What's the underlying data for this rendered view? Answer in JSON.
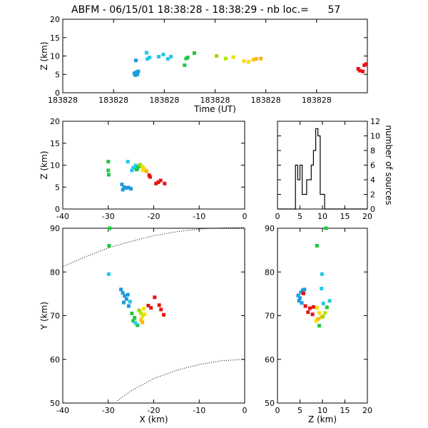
{
  "title": "ABFM - 06/15/01 18:38:28 - 18:38:29 - nb loc.=      57",
  "chart_data": [
    {
      "id": "time-height",
      "type": "scatter",
      "xlabel": "Time (UT)",
      "ylabel": "Z (km)",
      "x_tick_labels": [
        "183828",
        "183828",
        "183828",
        "183828",
        "183828",
        "183828"
      ],
      "xlim": [
        0,
        1
      ],
      "ylim": [
        0,
        20
      ],
      "yticks": [
        0,
        5,
        10,
        15,
        20
      ],
      "points": [
        {
          "x": 0.238,
          "y": 4.8,
          "c": "#1e9bdc"
        },
        {
          "x": 0.242,
          "y": 5.6,
          "c": "#1e9bdc"
        },
        {
          "x": 0.245,
          "y": 5.0,
          "c": "#1e9bdc"
        },
        {
          "x": 0.235,
          "y": 5.3,
          "c": "#1e9bdc"
        },
        {
          "x": 0.248,
          "y": 5.8,
          "c": "#1e9bdc"
        },
        {
          "x": 0.24,
          "y": 8.8,
          "c": "#1e9bdc"
        },
        {
          "x": 0.275,
          "y": 10.9,
          "c": "#22c8e6"
        },
        {
          "x": 0.285,
          "y": 9.6,
          "c": "#22c8e6"
        },
        {
          "x": 0.278,
          "y": 9.2,
          "c": "#22c8e6"
        },
        {
          "x": 0.315,
          "y": 9.8,
          "c": "#22c8e6"
        },
        {
          "x": 0.33,
          "y": 10.4,
          "c": "#22c8e6"
        },
        {
          "x": 0.345,
          "y": 9.2,
          "c": "#22c8e6"
        },
        {
          "x": 0.355,
          "y": 9.8,
          "c": "#22c8e6"
        },
        {
          "x": 0.4,
          "y": 7.5,
          "c": "#1ec840"
        },
        {
          "x": 0.405,
          "y": 9.3,
          "c": "#1ec840"
        },
        {
          "x": 0.41,
          "y": 9.6,
          "c": "#1ec840"
        },
        {
          "x": 0.432,
          "y": 10.8,
          "c": "#1ec840"
        },
        {
          "x": 0.505,
          "y": 10.0,
          "c": "#96dc00"
        },
        {
          "x": 0.535,
          "y": 9.3,
          "c": "#b4e600"
        },
        {
          "x": 0.56,
          "y": 9.7,
          "c": "#e6e600"
        },
        {
          "x": 0.595,
          "y": 8.6,
          "c": "#ffdc00"
        },
        {
          "x": 0.61,
          "y": 8.4,
          "c": "#ffdc00"
        },
        {
          "x": 0.625,
          "y": 9.0,
          "c": "#ffc800"
        },
        {
          "x": 0.635,
          "y": 9.2,
          "c": "#ffb400"
        },
        {
          "x": 0.65,
          "y": 9.3,
          "c": "#ffb400"
        },
        {
          "x": 0.97,
          "y": 6.5,
          "c": "#e61414"
        },
        {
          "x": 0.975,
          "y": 6.0,
          "c": "#e61414"
        },
        {
          "x": 0.985,
          "y": 5.8,
          "c": "#e61414"
        },
        {
          "x": 0.99,
          "y": 7.5,
          "c": "#e61414"
        },
        {
          "x": 0.996,
          "y": 7.8,
          "c": "#e61414"
        }
      ]
    },
    {
      "id": "xz",
      "type": "scatter",
      "ylabel": "Z (km)",
      "xlim": [
        -40,
        0
      ],
      "ylim": [
        0,
        20
      ],
      "xticks": [
        -40,
        -30,
        -20,
        -10,
        0
      ],
      "yticks": [
        0,
        5,
        10,
        15,
        20
      ],
      "points": [
        {
          "x": -30,
          "y": 10.8,
          "c": "#1ec840"
        },
        {
          "x": -30,
          "y": 8.8,
          "c": "#1ec840"
        },
        {
          "x": -29.9,
          "y": 7.8,
          "c": "#1ec840"
        },
        {
          "x": -25.7,
          "y": 10.8,
          "c": "#22c8e6"
        },
        {
          "x": -27,
          "y": 5.6,
          "c": "#1e9bdc"
        },
        {
          "x": -26.5,
          "y": 5.0,
          "c": "#1e9bdc"
        },
        {
          "x": -26,
          "y": 4.8,
          "c": "#1e9bdc"
        },
        {
          "x": -25.5,
          "y": 4.9,
          "c": "#1e9bdc"
        },
        {
          "x": -25,
          "y": 4.6,
          "c": "#1e9bdc"
        },
        {
          "x": -26.8,
          "y": 4.4,
          "c": "#1e9bdc"
        },
        {
          "x": -24.5,
          "y": 9.4,
          "c": "#22c8e6"
        },
        {
          "x": -24,
          "y": 9.9,
          "c": "#22c8e6"
        },
        {
          "x": -24.8,
          "y": 8.8,
          "c": "#22c8e6"
        },
        {
          "x": -23.8,
          "y": 9.0,
          "c": "#1ec840"
        },
        {
          "x": -23.2,
          "y": 9.7,
          "c": "#1ec840"
        },
        {
          "x": -23.6,
          "y": 9.2,
          "c": "#1ec840"
        },
        {
          "x": -23,
          "y": 10.1,
          "c": "#96dc00"
        },
        {
          "x": -22.5,
          "y": 9.7,
          "c": "#e6e600"
        },
        {
          "x": -22.2,
          "y": 9.3,
          "c": "#ffdc00"
        },
        {
          "x": -22,
          "y": 8.8,
          "c": "#ffc800"
        },
        {
          "x": -21.6,
          "y": 8.6,
          "c": "#ffb400"
        },
        {
          "x": -22.4,
          "y": 8.9,
          "c": "#ffdc00"
        },
        {
          "x": -21,
          "y": 7.7,
          "c": "#e61414"
        },
        {
          "x": -20.8,
          "y": 7.3,
          "c": "#e61414"
        },
        {
          "x": -19,
          "y": 6.1,
          "c": "#e61414"
        },
        {
          "x": -18.5,
          "y": 6.5,
          "c": "#e61414"
        },
        {
          "x": -17.6,
          "y": 5.8,
          "c": "#e61414"
        },
        {
          "x": -19.5,
          "y": 5.8,
          "c": "#e61414"
        }
      ]
    },
    {
      "id": "histogram",
      "type": "bar",
      "ylabel": "number of sources",
      "xlim": [
        0,
        20
      ],
      "ylim": [
        0,
        12
      ],
      "xticks": [
        0,
        5,
        10,
        15,
        20
      ],
      "yticks": [
        0,
        2,
        4,
        6,
        8,
        10,
        12
      ],
      "step": [
        [
          0,
          0
        ],
        [
          4,
          0
        ],
        [
          4,
          6
        ],
        [
          4.5,
          6
        ],
        [
          4.5,
          4
        ],
        [
          5,
          4
        ],
        [
          5,
          6
        ],
        [
          5.5,
          6
        ],
        [
          5.5,
          2
        ],
        [
          6.5,
          2
        ],
        [
          6.5,
          4
        ],
        [
          7.5,
          4
        ],
        [
          7.5,
          6
        ],
        [
          8,
          6
        ],
        [
          8,
          8
        ],
        [
          8.5,
          8
        ],
        [
          8.5,
          11
        ],
        [
          9,
          11
        ],
        [
          9,
          10
        ],
        [
          9.5,
          10
        ],
        [
          9.5,
          2
        ],
        [
          10.5,
          2
        ],
        [
          10.5,
          0
        ],
        [
          20,
          0
        ]
      ]
    },
    {
      "id": "xy",
      "type": "scatter",
      "xlabel": "X (km)",
      "ylabel": "Y (km)",
      "xlim": [
        -40,
        0
      ],
      "ylim": [
        50,
        90
      ],
      "xticks": [
        -40,
        -30,
        -20,
        -10,
        0
      ],
      "yticks": [
        50,
        60,
        70,
        80,
        90
      ],
      "points": [
        {
          "x": -29.7,
          "y": 90,
          "c": "#1ec840"
        },
        {
          "x": -29.8,
          "y": 86,
          "c": "#1ec840"
        },
        {
          "x": -29.9,
          "y": 79.5,
          "c": "#22c8e6"
        },
        {
          "x": -27.2,
          "y": 76,
          "c": "#1e9bdc"
        },
        {
          "x": -26.8,
          "y": 75.2,
          "c": "#1e9bdc"
        },
        {
          "x": -26.4,
          "y": 74.5,
          "c": "#1e9bdc"
        },
        {
          "x": -26,
          "y": 73.8,
          "c": "#1e9bdc"
        },
        {
          "x": -25.7,
          "y": 74.8,
          "c": "#1e9bdc"
        },
        {
          "x": -26.6,
          "y": 73.0,
          "c": "#1e9bdc"
        },
        {
          "x": -25.5,
          "y": 72.2,
          "c": "#1e9bdc"
        },
        {
          "x": -25.2,
          "y": 73.2,
          "c": "#22c8e6"
        },
        {
          "x": -24.8,
          "y": 70.5,
          "c": "#1ec840"
        },
        {
          "x": -24.2,
          "y": 69.5,
          "c": "#1ec840"
        },
        {
          "x": -24.5,
          "y": 68.8,
          "c": "#1ec840"
        },
        {
          "x": -23.6,
          "y": 67.8,
          "c": "#1ec840"
        },
        {
          "x": -24.0,
          "y": 68.3,
          "c": "#22c8e6"
        },
        {
          "x": -23.2,
          "y": 71.2,
          "c": "#96dc00"
        },
        {
          "x": -22.8,
          "y": 70.6,
          "c": "#b4e600"
        },
        {
          "x": -22.5,
          "y": 69.8,
          "c": "#e6e600"
        },
        {
          "x": -22.2,
          "y": 71.6,
          "c": "#ffdc00"
        },
        {
          "x": -22.8,
          "y": 69.0,
          "c": "#ffc800"
        },
        {
          "x": -22.5,
          "y": 68.5,
          "c": "#ffb400"
        },
        {
          "x": -22.0,
          "y": 70.3,
          "c": "#ffdc00"
        },
        {
          "x": -21.2,
          "y": 72.3,
          "c": "#e61414"
        },
        {
          "x": -20.6,
          "y": 71.8,
          "c": "#e61414"
        },
        {
          "x": -19.8,
          "y": 74.2,
          "c": "#e61414"
        },
        {
          "x": -18.8,
          "y": 72.4,
          "c": "#e61414"
        },
        {
          "x": -18.4,
          "y": 71.4,
          "c": "#e61414"
        },
        {
          "x": -17.8,
          "y": 70.2,
          "c": "#e61414"
        }
      ],
      "boundary_curves": [
        [
          [
            -40,
            81.2
          ],
          [
            -35,
            83.5
          ],
          [
            -30,
            85.5
          ],
          [
            -25,
            87.0
          ],
          [
            -20,
            88.3
          ],
          [
            -15,
            89.2
          ],
          [
            -10,
            89.8
          ],
          [
            -5,
            90.1
          ],
          [
            0,
            90.2
          ]
        ],
        [
          [
            -28,
            50.5
          ],
          [
            -25,
            52.8
          ],
          [
            -20,
            55.6
          ],
          [
            -15,
            57.5
          ],
          [
            -10,
            58.8
          ],
          [
            -5,
            59.7
          ],
          [
            0,
            60.0
          ]
        ]
      ]
    },
    {
      "id": "zy",
      "type": "scatter",
      "xlabel": "Z (km)",
      "xlim": [
        0,
        20
      ],
      "ylim": [
        50,
        90
      ],
      "xticks": [
        0,
        5,
        10,
        15,
        20
      ],
      "yticks": [
        50,
        60,
        70,
        80,
        90
      ],
      "points": [
        {
          "x": 10.8,
          "y": 90,
          "c": "#1ec840"
        },
        {
          "x": 8.8,
          "y": 86,
          "c": "#1ec840"
        },
        {
          "x": 9.9,
          "y": 79.5,
          "c": "#22c8e6"
        },
        {
          "x": 9.8,
          "y": 76.2,
          "c": "#22c8e6"
        },
        {
          "x": 5.2,
          "y": 75.3,
          "c": "#1e9bdc"
        },
        {
          "x": 5.6,
          "y": 75.8,
          "c": "#1e9bdc"
        },
        {
          "x": 6.0,
          "y": 76.0,
          "c": "#1e9bdc"
        },
        {
          "x": 4.6,
          "y": 74.6,
          "c": "#1e9bdc"
        },
        {
          "x": 5.0,
          "y": 74.0,
          "c": "#1e9bdc"
        },
        {
          "x": 4.8,
          "y": 73.4,
          "c": "#1e9bdc"
        },
        {
          "x": 5.4,
          "y": 72.9,
          "c": "#1e9bdc"
        },
        {
          "x": 5.8,
          "y": 75.1,
          "c": "#e61414"
        },
        {
          "x": 6.2,
          "y": 72.2,
          "c": "#e61414"
        },
        {
          "x": 7.2,
          "y": 71.7,
          "c": "#e61414"
        },
        {
          "x": 8.0,
          "y": 72.0,
          "c": "#e61414"
        },
        {
          "x": 6.8,
          "y": 70.8,
          "c": "#e61414"
        },
        {
          "x": 7.8,
          "y": 70.3,
          "c": "#e61414"
        },
        {
          "x": 8.8,
          "y": 71.8,
          "c": "#e6e600"
        },
        {
          "x": 9.3,
          "y": 70.6,
          "c": "#ffdc00"
        },
        {
          "x": 9.7,
          "y": 69.6,
          "c": "#ffc800"
        },
        {
          "x": 9.0,
          "y": 69.2,
          "c": "#ffb400"
        },
        {
          "x": 8.6,
          "y": 68.8,
          "c": "#ffdc00"
        },
        {
          "x": 9.3,
          "y": 67.7,
          "c": "#1ec840"
        },
        {
          "x": 10.1,
          "y": 69.8,
          "c": "#96dc00"
        },
        {
          "x": 10.6,
          "y": 70.6,
          "c": "#b4e600"
        },
        {
          "x": 11.0,
          "y": 71.9,
          "c": "#1ec840"
        },
        {
          "x": 11.6,
          "y": 73.4,
          "c": "#22c8e6"
        },
        {
          "x": 10.2,
          "y": 72.8,
          "c": "#22c8e6"
        }
      ]
    }
  ]
}
